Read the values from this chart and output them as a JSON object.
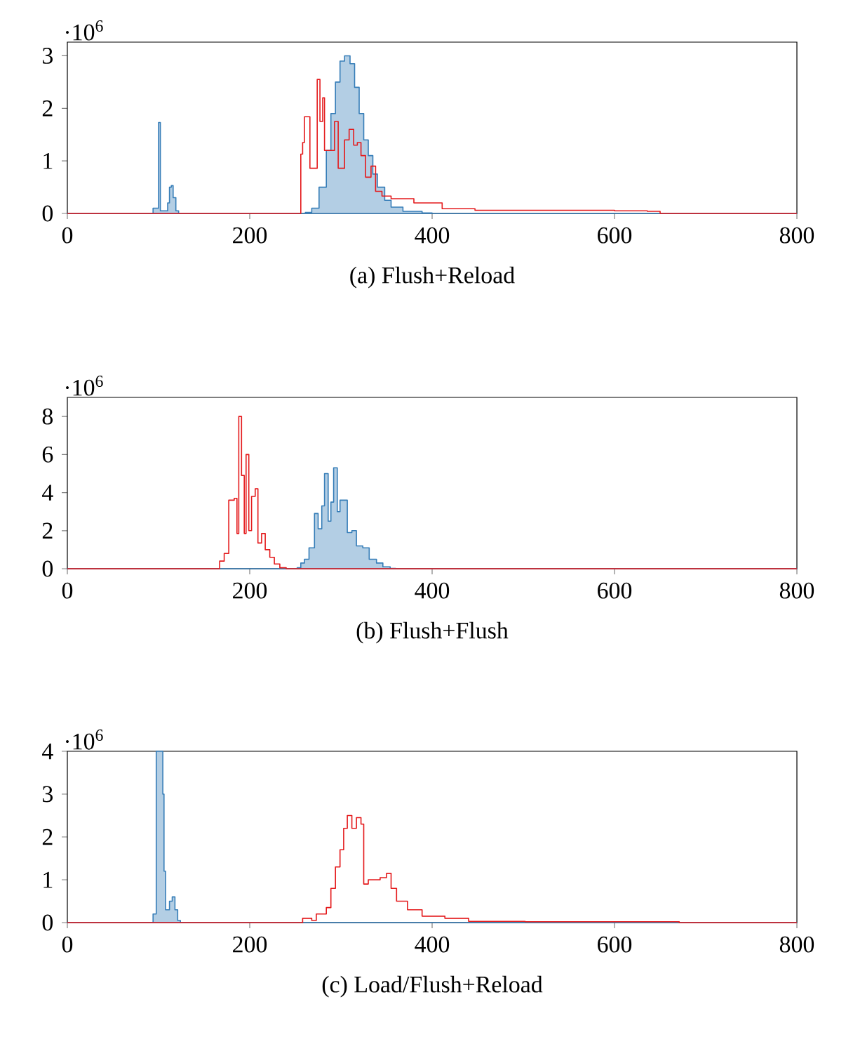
{
  "chart_data": [
    {
      "type": "step",
      "title": "(a) Flush+Reload",
      "annotations": [
        "·10$^{6}$"
      ],
      "xlim": [
        0,
        800
      ],
      "xticks": [
        0,
        200,
        400,
        600,
        800
      ],
      "ylim": [
        0,
        3.26
      ],
      "yticks": [
        0,
        1,
        2,
        3
      ],
      "series": [
        {
          "type": "area",
          "color": "#377eb8",
          "x": [
            0,
            94,
            98,
            100,
            102,
            106,
            110,
            112,
            114,
            116,
            119,
            122,
            255,
            261,
            268,
            276,
            284,
            289,
            294,
            299,
            304,
            310,
            315,
            320,
            325,
            330,
            335,
            340,
            348,
            355,
            368,
            389,
            400,
            800
          ],
          "values": [
            0,
            0.1,
            0.1,
            1.73,
            0.05,
            0.05,
            0.2,
            0.5,
            0.53,
            0.3,
            0.05,
            0,
            0,
            0.02,
            0.1,
            0.5,
            1.2,
            1.9,
            2.5,
            2.9,
            3.0,
            2.85,
            2.4,
            1.9,
            1.4,
            1.1,
            0.75,
            0.5,
            0.25,
            0.12,
            0.04,
            0.01,
            0,
            0
          ]
        },
        {
          "type": "step",
          "color": "#e41a1c",
          "x": [
            0,
            256,
            258,
            260,
            263,
            266,
            270,
            274,
            277,
            280,
            282,
            287,
            293,
            297,
            304,
            309,
            314,
            318,
            322,
            327,
            333,
            338,
            345,
            355,
            380,
            411,
            447,
            500,
            563,
            600,
            636,
            650,
            800
          ],
          "values": [
            0,
            1.13,
            1.35,
            1.84,
            1.84,
            0.86,
            0.86,
            2.55,
            1.75,
            2.2,
            1.2,
            1.2,
            1.75,
            0.86,
            1.4,
            1.6,
            1.3,
            1.35,
            1.1,
            0.69,
            0.9,
            0.42,
            0.33,
            0.28,
            0.2,
            0.09,
            0.06,
            0.06,
            0.06,
            0.05,
            0.04,
            0,
            0
          ]
        }
      ]
    },
    {
      "type": "step",
      "title": "(b) Flush+Flush",
      "annotations": [
        "·10$^{6}$"
      ],
      "xlim": [
        0,
        800
      ],
      "xticks": [
        0,
        200,
        400,
        600,
        800
      ],
      "ylim": [
        0,
        9
      ],
      "yticks": [
        0,
        2,
        4,
        6,
        8
      ],
      "series": [
        {
          "type": "area",
          "color": "#377eb8",
          "x": [
            0,
            252,
            256,
            260,
            265,
            271,
            275,
            279,
            282,
            286,
            289,
            292,
            296,
            299,
            303,
            307,
            312,
            317,
            324,
            331,
            339,
            346,
            354,
            360,
            800
          ],
          "values": [
            0,
            0.05,
            0.3,
            0.5,
            1.1,
            2.9,
            2.1,
            3.3,
            5.0,
            2.5,
            3.5,
            5.3,
            3.0,
            3.6,
            3.6,
            1.9,
            2.0,
            1.2,
            1.1,
            0.5,
            0.3,
            0.1,
            0.02,
            0,
            0
          ]
        },
        {
          "type": "step",
          "color": "#e41a1c",
          "x": [
            0,
            167,
            172,
            177,
            183,
            186,
            188,
            191,
            194,
            196,
            199,
            202,
            206,
            209,
            213,
            217,
            222,
            227,
            233,
            240,
            800
          ],
          "values": [
            0,
            0.4,
            0.8,
            3.6,
            3.7,
            1.85,
            8.0,
            4.9,
            1.85,
            6.0,
            2.0,
            3.8,
            4.2,
            1.35,
            1.85,
            1.0,
            0.6,
            0.25,
            0.05,
            0,
            0
          ]
        }
      ]
    },
    {
      "type": "step",
      "title": "(c) Load/Flush+Reload",
      "annotations": [
        "·10$^{6}$"
      ],
      "xlim": [
        0,
        800
      ],
      "xticks": [
        0,
        200,
        400,
        600,
        800
      ],
      "ylim": [
        0,
        4
      ],
      "yticks": [
        0,
        1,
        2,
        3,
        4
      ],
      "series": [
        {
          "type": "area",
          "color": "#377eb8",
          "x": [
            0,
            94,
            97.5,
            101.6,
            104.7,
            106,
            107.7,
            112,
            115,
            118,
            121,
            124,
            800
          ],
          "values": [
            0,
            0.2,
            4,
            4,
            3.0,
            1.2,
            0.3,
            0.5,
            0.6,
            0.3,
            0.05,
            0,
            0
          ]
        },
        {
          "type": "step",
          "color": "#e41a1c",
          "x": [
            0,
            258,
            268,
            273,
            284,
            289,
            294,
            299,
            303,
            307,
            312,
            317,
            322,
            325,
            330,
            335,
            343,
            350,
            355,
            361,
            373,
            389,
            414,
            440,
            502,
            656,
            671,
            800
          ],
          "values": [
            0,
            0.1,
            0.05,
            0.2,
            0.35,
            0.8,
            1.3,
            1.7,
            2.2,
            2.5,
            2.2,
            2.45,
            2.3,
            0.9,
            1.0,
            1.0,
            1.05,
            1.15,
            0.8,
            0.5,
            0.3,
            0.15,
            0.1,
            0.03,
            0.02,
            0.02,
            0,
            0
          ]
        }
      ]
    }
  ]
}
